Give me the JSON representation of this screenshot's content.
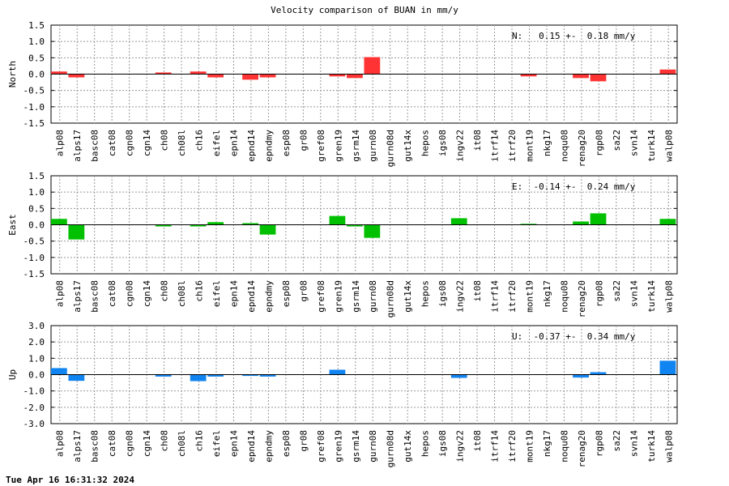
{
  "timestamp": "Tue Apr 16 16:31:32 2024",
  "chart_data": [
    {
      "type": "bar",
      "title": "Velocity comparison of BUAN in mm/y",
      "ylabel": "North",
      "ylim": [
        -1.5,
        1.5
      ],
      "yticks": [
        "1.5",
        "1.0",
        "0.5",
        "0.0",
        "-0.5",
        "-1.0",
        "-1.5"
      ],
      "grid": true,
      "color": "#ff3333",
      "annotation": "N:   0.15 +-  0.18 mm/y",
      "categories": [
        "alp08",
        "alps17",
        "basc08",
        "cat08",
        "cgn08",
        "cgn14",
        "ch08",
        "ch08l",
        "ch16",
        "eifel",
        "epn14",
        "epnd14",
        "epndmy",
        "esp08",
        "gr08",
        "gref08",
        "gren19",
        "gsrm14",
        "gurn08",
        "gurn08d",
        "gut14x",
        "hepos",
        "igs08",
        "ingv22",
        "it08",
        "itrf14",
        "itrf20",
        "mont19",
        "nkg17",
        "noqu08",
        "renag20",
        "rgp08",
        "sa22",
        "svn14",
        "turk14",
        "walp08"
      ],
      "values": [
        0.08,
        -0.1,
        0,
        0,
        0,
        0,
        0.05,
        0,
        0.08,
        -0.1,
        0,
        -0.17,
        -0.1,
        0,
        0,
        0,
        -0.07,
        -0.12,
        0.52,
        0,
        0,
        0,
        0,
        0,
        0,
        0,
        0,
        -0.07,
        0,
        0,
        -0.12,
        -0.22,
        0,
        0,
        0,
        0.14
      ]
    },
    {
      "type": "bar",
      "title": "",
      "ylabel": "East",
      "ylim": [
        -1.5,
        1.5
      ],
      "yticks": [
        "1.5",
        "1.0",
        "0.5",
        "0.0",
        "-0.5",
        "-1.0",
        "-1.5"
      ],
      "grid": true,
      "color": "#00c000",
      "annotation": "E:  -0.14 +-  0.24 mm/y",
      "categories": [
        "alp08",
        "alps17",
        "basc08",
        "cat08",
        "cgn08",
        "cgn14",
        "ch08",
        "ch08l",
        "ch16",
        "eifel",
        "epn14",
        "epnd14",
        "epndmy",
        "esp08",
        "gr08",
        "gref08",
        "gren19",
        "gsrm14",
        "gurn08",
        "gurn08d",
        "gut14x",
        "hepos",
        "igs08",
        "ingv22",
        "it08",
        "itrf14",
        "itrf20",
        "mont19",
        "nkg17",
        "noqu08",
        "renag20",
        "rgp08",
        "sa22",
        "svn14",
        "turk14",
        "walp08"
      ],
      "values": [
        0.18,
        -0.45,
        0,
        0,
        0,
        0,
        -0.05,
        0,
        -0.05,
        0.08,
        0,
        0.05,
        -0.3,
        0,
        0,
        0,
        0.27,
        -0.05,
        -0.4,
        0,
        0,
        0,
        0,
        0.2,
        0,
        0,
        0,
        0.03,
        0,
        0,
        0.1,
        0.35,
        0,
        0,
        0,
        0.18
      ]
    },
    {
      "type": "bar",
      "title": "",
      "ylabel": "Up",
      "ylim": [
        -3.0,
        3.0
      ],
      "yticks": [
        "3.0",
        "2.0",
        "1.0",
        "0.0",
        "-1.0",
        "-2.0",
        "-3.0"
      ],
      "grid": true,
      "color": "#1084f0",
      "annotation": "U:  -0.37 +-  0.34 mm/y",
      "categories": [
        "alp08",
        "alps17",
        "basc08",
        "cat08",
        "cgn08",
        "cgn14",
        "ch08",
        "ch08l",
        "ch16",
        "eifel",
        "epn14",
        "epnd14",
        "epndmy",
        "esp08",
        "gr08",
        "gref08",
        "gren19",
        "gsrm14",
        "gurn08",
        "gurn08d",
        "gut14x",
        "hepos",
        "igs08",
        "ingv22",
        "it08",
        "itrf14",
        "itrf20",
        "mont19",
        "nkg17",
        "noqu08",
        "renag20",
        "rgp08",
        "sa22",
        "svn14",
        "turk14",
        "walp08"
      ],
      "values": [
        0.4,
        -0.38,
        0,
        0,
        0,
        0,
        -0.12,
        0,
        -0.4,
        -0.12,
        0,
        -0.08,
        -0.12,
        0,
        0,
        0,
        0.3,
        0,
        0,
        0,
        0,
        0,
        0,
        -0.2,
        0,
        0,
        0,
        0,
        0,
        0,
        -0.18,
        0.15,
        0,
        0,
        0,
        0.85
      ]
    }
  ]
}
